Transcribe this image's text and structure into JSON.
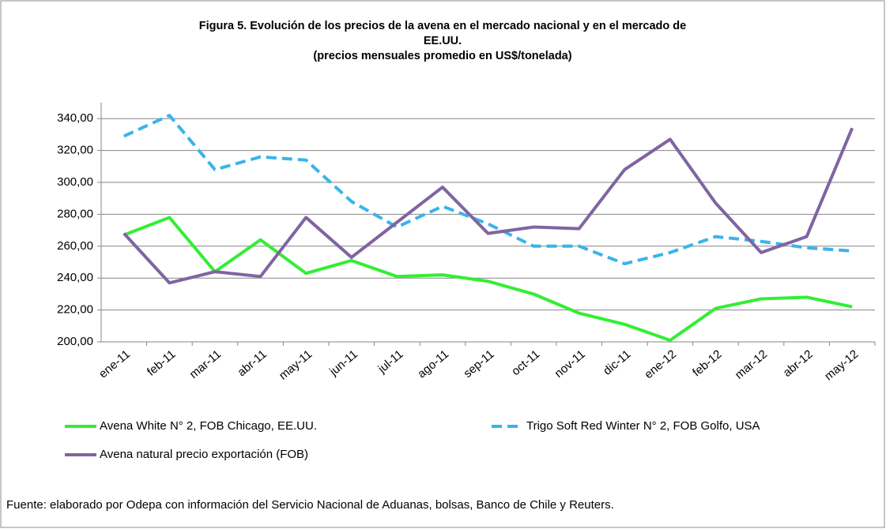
{
  "chart_data": {
    "type": "line",
    "title": [
      "Figura 5. Evolución  de los precios de la avena en el mercado nacional y en el mercado de",
      "EE.UU.",
      "(precios mensuales promedio en US$/tonelada)"
    ],
    "categories": [
      "ene-11",
      "feb-11",
      "mar-11",
      "abr-11",
      "may-11",
      "jun-11",
      "jul-11",
      "ago-11",
      "sep-11",
      "oct-11",
      "nov-11",
      "dic-11",
      "ene-12",
      "feb-12",
      "mar-12",
      "abr-12",
      "may-12"
    ],
    "series": [
      {
        "name": "Avena White N° 2, FOB Chicago, EE.UU.",
        "color": "#33ee33",
        "dashed": false,
        "values": [
          267,
          278,
          244,
          264,
          243,
          251,
          241,
          242,
          238,
          230,
          218,
          211,
          201,
          221,
          227,
          228,
          222
        ]
      },
      {
        "name": "Trigo Soft Red Winter N° 2, FOB Golfo, USA",
        "color": "#3ab4e8",
        "dashed": true,
        "values": [
          329,
          342,
          308,
          316,
          314,
          288,
          272,
          285,
          274,
          260,
          260,
          249,
          256,
          266,
          263,
          259,
          257
        ]
      },
      {
        "name": "Avena natural precio exportación (FOB)",
        "color": "#8064a2",
        "dashed": false,
        "values": [
          268,
          237,
          244,
          241,
          278,
          253,
          275,
          297,
          268,
          272,
          271,
          308,
          327,
          287,
          256,
          266,
          334
        ]
      }
    ],
    "ylim": [
      200,
      350
    ],
    "yticks": [
      {
        "value": 200,
        "label": "200,00"
      },
      {
        "value": 220,
        "label": "220,00"
      },
      {
        "value": 240,
        "label": "240,00"
      },
      {
        "value": 260,
        "label": "260,00"
      },
      {
        "value": 280,
        "label": "280,00"
      },
      {
        "value": 300,
        "label": "300,00"
      },
      {
        "value": 320,
        "label": "320,00"
      },
      {
        "value": 340,
        "label": "340,00"
      }
    ],
    "grid": true,
    "source": "Fuente: elaborado por Odepa con información del Servicio Nacional de Aduanas, bolsas,  Banco de Chile y Reuters."
  }
}
